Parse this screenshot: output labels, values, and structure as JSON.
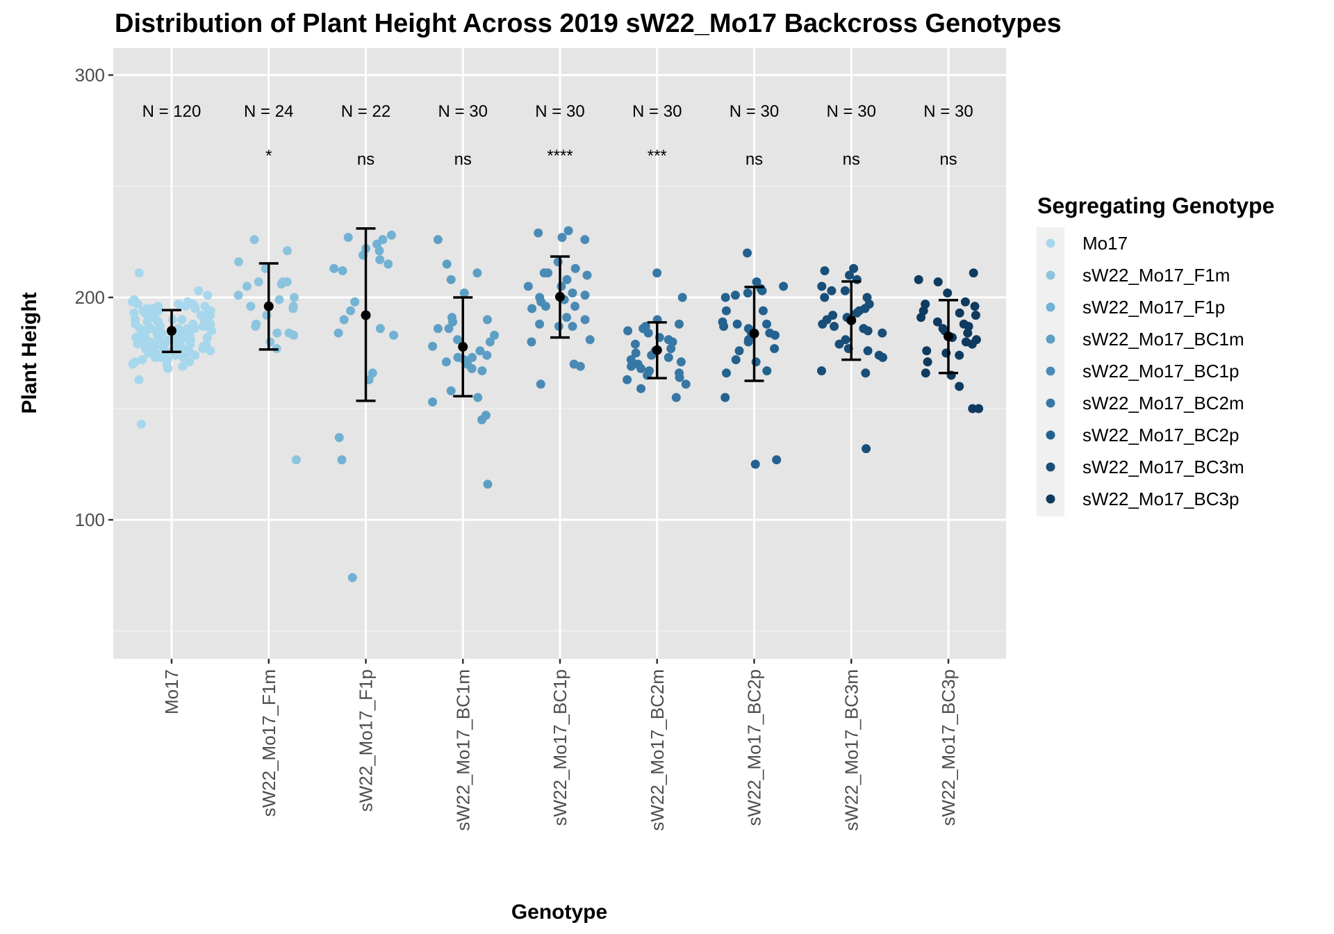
{
  "chart_data": {
    "type": "scatter",
    "subtype": "jittered strip plot with mean ± SD error bars",
    "title": "Distribution of Plant Height Across 2019 sW22_Mo17 Backcross Genotypes",
    "xlabel": "Genotype",
    "ylabel": "Plant Height",
    "ylim": [
      37.5,
      312
    ],
    "yticks": [
      100,
      200,
      300
    ],
    "y_minor_gridlines": [
      50,
      150,
      250
    ],
    "grid": true,
    "legend": {
      "title": "Segregating Genotype",
      "placement": "right"
    },
    "categories": [
      "Mo17",
      "sW22_Mo17_F1m",
      "sW22_Mo17_F1p",
      "sW22_Mo17_BC1m",
      "sW22_Mo17_BC1p",
      "sW22_Mo17_BC2m",
      "sW22_Mo17_BC2p",
      "sW22_Mo17_BC3m",
      "sW22_Mo17_BC3p"
    ],
    "series": [
      {
        "name": "Mo17",
        "color": "#a6d7ec",
        "n_label": "N = 120",
        "significance": "",
        "mean": 185,
        "err_low": 175.5,
        "err_high": 194.3,
        "values": [
          211,
          203,
          201,
          199,
          198,
          198,
          197,
          197,
          196,
          196,
          196,
          195,
          195,
          195,
          194,
          194,
          194,
          193,
          193,
          193,
          192,
          192,
          192,
          191,
          191,
          191,
          190,
          190,
          190,
          189,
          189,
          189,
          188,
          188,
          188,
          188,
          187,
          187,
          187,
          186,
          186,
          186,
          186,
          185,
          185,
          185,
          185,
          184,
          184,
          184,
          184,
          183,
          183,
          183,
          183,
          183,
          182,
          182,
          182,
          182,
          182,
          181,
          181,
          181,
          181,
          181,
          180,
          180,
          180,
          180,
          180,
          179,
          179,
          179,
          179,
          178,
          178,
          178,
          178,
          177,
          177,
          177,
          177,
          176,
          176,
          176,
          175,
          175,
          175,
          175,
          174,
          174,
          174,
          173,
          173,
          173,
          172,
          172,
          171,
          171,
          170,
          170,
          169,
          168,
          196,
          197,
          198,
          190,
          186,
          181,
          179,
          176,
          182,
          184,
          188,
          192,
          194,
          180,
          163,
          143
        ]
      },
      {
        "name": "sW22_Mo17_F1m",
        "color": "#8cc4de",
        "n_label": "N = 24",
        "significance": "*",
        "mean": 196,
        "err_low": 176.6,
        "err_high": 215.3,
        "values": [
          226,
          221,
          216,
          213,
          207,
          207,
          207,
          206,
          205,
          201,
          200,
          199,
          196,
          196,
          195,
          192,
          188,
          187,
          184,
          184,
          183,
          180,
          177,
          127
        ]
      },
      {
        "name": "sW22_Mo17_F1p",
        "color": "#71b1d3",
        "n_label": "N = 22",
        "significance": "ns",
        "mean": 192,
        "err_low": 153.5,
        "err_high": 231,
        "values": [
          228,
          227,
          226,
          224,
          222,
          221,
          219,
          217,
          215,
          213,
          212,
          198,
          194,
          186,
          184,
          183,
          166,
          163,
          137,
          127,
          74,
          190
        ]
      },
      {
        "name": "sW22_Mo17_BC1m",
        "color": "#5d9fc4",
        "n_label": "N = 30",
        "significance": "ns",
        "mean": 177.8,
        "err_low": 155.6,
        "err_high": 200,
        "values": [
          226,
          215,
          211,
          208,
          202,
          191,
          190,
          189,
          186,
          186,
          183,
          180,
          178,
          176,
          174,
          173,
          173,
          172,
          171,
          171,
          170,
          168,
          167,
          158,
          155,
          153,
          147,
          145,
          116,
          181
        ]
      },
      {
        "name": "sW22_Mo17_BC1p",
        "color": "#4a8bb5",
        "n_label": "N = 30",
        "significance": "****",
        "mean": 200.3,
        "err_low": 182,
        "err_high": 218.4,
        "values": [
          230,
          229,
          227,
          226,
          216,
          213,
          211,
          211,
          210,
          208,
          205,
          202,
          201,
          200,
          199,
          198,
          196,
          196,
          195,
          191,
          190,
          188,
          187,
          187,
          180,
          181,
          170,
          169,
          161,
          205
        ]
      },
      {
        "name": "sW22_Mo17_BC2m",
        "color": "#3777a3",
        "n_label": "N = 30",
        "significance": "***",
        "mean": 176.3,
        "err_low": 163.7,
        "err_high": 188.8,
        "values": [
          211,
          200,
          190,
          188,
          187,
          186,
          185,
          184,
          182,
          181,
          180,
          179,
          177,
          176,
          175,
          174,
          173,
          172,
          171,
          170,
          169,
          168,
          167,
          166,
          165,
          164,
          163,
          161,
          159,
          155
        ]
      },
      {
        "name": "sW22_Mo17_BC2p",
        "color": "#23628f",
        "n_label": "N = 30",
        "significance": "ns",
        "mean": 183.8,
        "err_low": 162.5,
        "err_high": 204.7,
        "values": [
          220,
          207,
          205,
          204,
          203,
          202,
          201,
          200,
          194,
          194,
          189,
          188,
          188,
          187,
          186,
          185,
          184,
          184,
          183,
          181,
          180,
          177,
          176,
          172,
          171,
          167,
          166,
          155,
          127,
          125
        ]
      },
      {
        "name": "sW22_Mo17_BC3m",
        "color": "#184e78",
        "n_label": "N = 30",
        "significance": "ns",
        "mean": 189.7,
        "err_low": 172,
        "err_high": 207.2,
        "values": [
          213,
          212,
          210,
          208,
          205,
          203,
          200,
          200,
          197,
          195,
          194,
          193,
          192,
          191,
          190,
          188,
          187,
          186,
          185,
          184,
          181,
          179,
          177,
          176,
          174,
          173,
          167,
          166,
          132,
          203
        ]
      },
      {
        "name": "sW22_Mo17_BC3p",
        "color": "#0f3a5f",
        "n_label": "N = 30",
        "significance": "ns",
        "mean": 182.5,
        "err_low": 166,
        "err_high": 198.8,
        "values": [
          211,
          208,
          207,
          202,
          198,
          197,
          196,
          194,
          193,
          192,
          191,
          189,
          188,
          187,
          186,
          185,
          184,
          182,
          181,
          180,
          179,
          176,
          175,
          174,
          171,
          166,
          165,
          160,
          150,
          150
        ]
      }
    ]
  }
}
